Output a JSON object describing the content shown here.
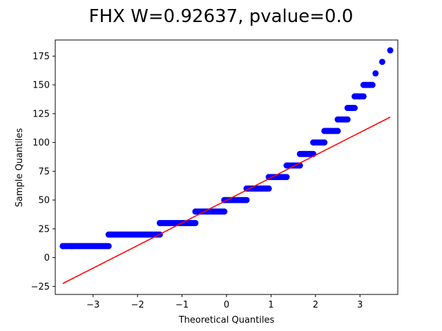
{
  "chart_data": {
    "type": "scatter",
    "title": "FHX W=0.92637, pvalue=0.0",
    "xlabel": "Theoretical Quantiles",
    "ylabel": "Sample Quantiles",
    "xlim": [
      -3.85,
      3.85
    ],
    "ylim": [
      -32,
      189
    ],
    "xticks": [
      -3,
      -2,
      -1,
      0,
      1,
      2,
      3
    ],
    "yticks": [
      -25,
      0,
      25,
      50,
      75,
      100,
      125,
      150,
      175
    ],
    "grid": false,
    "points_color": "#0000ff",
    "line_color": "#ff0000",
    "sample_steps": [
      {
        "y": 10,
        "x_from": -3.68,
        "x_to": -2.65
      },
      {
        "y": 20,
        "x_from": -2.65,
        "x_to": -1.5
      },
      {
        "y": 30,
        "x_from": -1.5,
        "x_to": -0.7
      },
      {
        "y": 40,
        "x_from": -0.7,
        "x_to": -0.05
      },
      {
        "y": 50,
        "x_from": -0.05,
        "x_to": 0.45
      },
      {
        "y": 60,
        "x_from": 0.45,
        "x_to": 0.95
      },
      {
        "y": 70,
        "x_from": 0.95,
        "x_to": 1.35
      },
      {
        "y": 80,
        "x_from": 1.35,
        "x_to": 1.65
      },
      {
        "y": 90,
        "x_from": 1.65,
        "x_to": 1.95
      },
      {
        "y": 100,
        "x_from": 1.95,
        "x_to": 2.2
      },
      {
        "y": 110,
        "x_from": 2.2,
        "x_to": 2.5
      },
      {
        "y": 120,
        "x_from": 2.5,
        "x_to": 2.72
      },
      {
        "y": 130,
        "x_from": 2.72,
        "x_to": 2.88
      },
      {
        "y": 140,
        "x_from": 2.88,
        "x_to": 3.08
      },
      {
        "y": 150,
        "x_from": 3.08,
        "x_to": 3.28
      }
    ],
    "outliers": [
      {
        "x": -3.68,
        "y": 10
      },
      {
        "x": -3.48,
        "y": 10
      },
      {
        "x": 3.35,
        "y": 160
      },
      {
        "x": 3.5,
        "y": 170
      },
      {
        "x": 3.68,
        "y": 180
      }
    ],
    "reference_line": {
      "x": [
        -3.68,
        3.68
      ],
      "y": [
        -22.5,
        122
      ]
    }
  }
}
